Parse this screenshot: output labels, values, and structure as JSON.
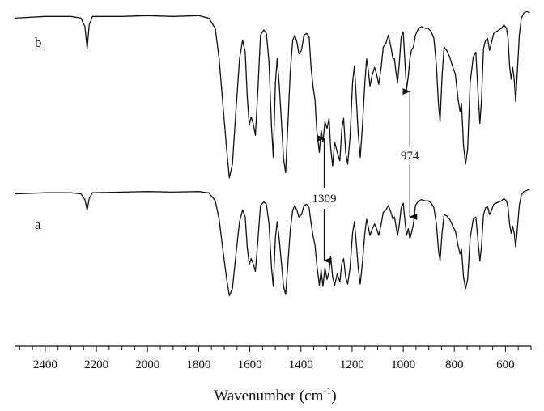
{
  "chart_data": {
    "type": "line",
    "xlabel_main": "Wavenumber (cm",
    "xlabel_sup": "-1",
    "xlabel_end": ")",
    "xlim": [
      2520,
      500
    ],
    "x_ticks": [
      2400,
      2200,
      2000,
      1800,
      1600,
      1400,
      1200,
      1000,
      800,
      600
    ],
    "x_tick_labels": [
      "2400",
      "2200",
      "2000",
      "1800",
      "1600",
      "1400",
      "1200",
      "1000",
      "800",
      "600"
    ],
    "y_units": "relative transmittance (0 = deepest, 1 = baseline)",
    "series": [
      {
        "name": "b",
        "points": [
          [
            2520,
            0.96
          ],
          [
            2400,
            0.97
          ],
          [
            2300,
            0.97
          ],
          [
            2260,
            0.96
          ],
          [
            2245,
            0.91
          ],
          [
            2236,
            0.78
          ],
          [
            2228,
            0.92
          ],
          [
            2215,
            0.97
          ],
          [
            2100,
            0.97
          ],
          [
            2000,
            0.975
          ],
          [
            1900,
            0.97
          ],
          [
            1800,
            0.975
          ],
          [
            1760,
            0.96
          ],
          [
            1735,
            0.9
          ],
          [
            1720,
            0.72
          ],
          [
            1705,
            0.45
          ],
          [
            1690,
            0.18
          ],
          [
            1680,
            0.02
          ],
          [
            1668,
            0.1
          ],
          [
            1655,
            0.4
          ],
          [
            1640,
            0.72
          ],
          [
            1628,
            0.83
          ],
          [
            1618,
            0.76
          ],
          [
            1610,
            0.5
          ],
          [
            1602,
            0.33
          ],
          [
            1595,
            0.38
          ],
          [
            1587,
            0.34
          ],
          [
            1578,
            0.27
          ],
          [
            1568,
            0.55
          ],
          [
            1558,
            0.86
          ],
          [
            1545,
            0.89
          ],
          [
            1535,
            0.87
          ],
          [
            1525,
            0.7
          ],
          [
            1515,
            0.32
          ],
          [
            1508,
            0.14
          ],
          [
            1500,
            0.58
          ],
          [
            1493,
            0.72
          ],
          [
            1485,
            0.57
          ],
          [
            1477,
            0.37
          ],
          [
            1468,
            0.13
          ],
          [
            1460,
            0.05
          ],
          [
            1452,
            0.3
          ],
          [
            1442,
            0.64
          ],
          [
            1432,
            0.83
          ],
          [
            1424,
            0.86
          ],
          [
            1416,
            0.82
          ],
          [
            1408,
            0.75
          ],
          [
            1398,
            0.77
          ],
          [
            1388,
            0.86
          ],
          [
            1378,
            0.87
          ],
          [
            1368,
            0.85
          ],
          [
            1360,
            0.66
          ],
          [
            1352,
            0.55
          ],
          [
            1345,
            0.48
          ],
          [
            1338,
            0.3
          ],
          [
            1328,
            0.17
          ],
          [
            1321,
            0.3
          ],
          [
            1314,
            0.23
          ],
          [
            1306,
            0.35
          ],
          [
            1298,
            0.31
          ],
          [
            1290,
            0.37
          ],
          [
            1284,
            0.2
          ],
          [
            1276,
            0.09
          ],
          [
            1268,
            0.23
          ],
          [
            1258,
            0.17
          ],
          [
            1248,
            0.12
          ],
          [
            1240,
            0.31
          ],
          [
            1233,
            0.37
          ],
          [
            1225,
            0.17
          ],
          [
            1217,
            0.1
          ],
          [
            1208,
            0.26
          ],
          [
            1198,
            0.58
          ],
          [
            1191,
            0.68
          ],
          [
            1184,
            0.5
          ],
          [
            1176,
            0.28
          ],
          [
            1168,
            0.14
          ],
          [
            1160,
            0.31
          ],
          [
            1150,
            0.58
          ],
          [
            1143,
            0.72
          ],
          [
            1137,
            0.66
          ],
          [
            1130,
            0.56
          ],
          [
            1122,
            0.62
          ],
          [
            1112,
            0.67
          ],
          [
            1104,
            0.63
          ],
          [
            1096,
            0.57
          ],
          [
            1086,
            0.67
          ],
          [
            1078,
            0.79
          ],
          [
            1068,
            0.81
          ],
          [
            1058,
            0.86
          ],
          [
            1048,
            0.79
          ],
          [
            1040,
            0.72
          ],
          [
            1034,
            0.72
          ],
          [
            1028,
            0.64
          ],
          [
            1022,
            0.58
          ],
          [
            1016,
            0.68
          ],
          [
            1008,
            0.85
          ],
          [
            1000,
            0.88
          ],
          [
            994,
            0.72
          ],
          [
            987,
            0.54
          ],
          [
            980,
            0.62
          ],
          [
            974,
            0.72
          ],
          [
            968,
            0.77
          ],
          [
            960,
            0.79
          ],
          [
            952,
            0.86
          ],
          [
            940,
            0.9
          ],
          [
            928,
            0.91
          ],
          [
            914,
            0.9
          ],
          [
            902,
            0.9
          ],
          [
            890,
            0.88
          ],
          [
            880,
            0.84
          ],
          [
            870,
            0.68
          ],
          [
            862,
            0.45
          ],
          [
            856,
            0.35
          ],
          [
            848,
            0.62
          ],
          [
            840,
            0.79
          ],
          [
            830,
            0.77
          ],
          [
            818,
            0.73
          ],
          [
            806,
            0.67
          ],
          [
            796,
            0.63
          ],
          [
            786,
            0.49
          ],
          [
            778,
            0.41
          ],
          [
            772,
            0.46
          ],
          [
            764,
            0.21
          ],
          [
            756,
            0.1
          ],
          [
            748,
            0.19
          ],
          [
            738,
            0.58
          ],
          [
            726,
            0.73
          ],
          [
            716,
            0.76
          ],
          [
            708,
            0.54
          ],
          [
            700,
            0.34
          ],
          [
            694,
            0.47
          ],
          [
            686,
            0.78
          ],
          [
            678,
            0.83
          ],
          [
            670,
            0.84
          ],
          [
            662,
            0.77
          ],
          [
            654,
            0.82
          ],
          [
            646,
            0.87
          ],
          [
            636,
            0.88
          ],
          [
            626,
            0.89
          ],
          [
            616,
            0.9
          ],
          [
            606,
            0.92
          ],
          [
            596,
            0.9
          ],
          [
            590,
            0.84
          ],
          [
            584,
            0.68
          ],
          [
            578,
            0.6
          ],
          [
            572,
            0.67
          ],
          [
            566,
            0.6
          ],
          [
            560,
            0.47
          ],
          [
            554,
            0.63
          ],
          [
            546,
            0.86
          ],
          [
            538,
            0.96
          ],
          [
            528,
            0.99
          ],
          [
            516,
            1.0
          ],
          [
            505,
            0.99
          ]
        ]
      },
      {
        "name": "a",
        "points": [
          [
            2520,
            0.94
          ],
          [
            2400,
            0.95
          ],
          [
            2300,
            0.95
          ],
          [
            2260,
            0.94
          ],
          [
            2245,
            0.89
          ],
          [
            2236,
            0.8
          ],
          [
            2228,
            0.9
          ],
          [
            2215,
            0.95
          ],
          [
            2100,
            0.955
          ],
          [
            2000,
            0.96
          ],
          [
            1900,
            0.955
          ],
          [
            1800,
            0.96
          ],
          [
            1760,
            0.95
          ],
          [
            1735,
            0.88
          ],
          [
            1720,
            0.72
          ],
          [
            1705,
            0.45
          ],
          [
            1690,
            0.2
          ],
          [
            1680,
            0.06
          ],
          [
            1668,
            0.12
          ],
          [
            1655,
            0.4
          ],
          [
            1640,
            0.7
          ],
          [
            1628,
            0.8
          ],
          [
            1618,
            0.74
          ],
          [
            1610,
            0.48
          ],
          [
            1602,
            0.33
          ],
          [
            1595,
            0.38
          ],
          [
            1587,
            0.34
          ],
          [
            1578,
            0.27
          ],
          [
            1568,
            0.55
          ],
          [
            1558,
            0.84
          ],
          [
            1545,
            0.87
          ],
          [
            1535,
            0.85
          ],
          [
            1525,
            0.68
          ],
          [
            1515,
            0.3
          ],
          [
            1508,
            0.14
          ],
          [
            1500,
            0.56
          ],
          [
            1493,
            0.7
          ],
          [
            1485,
            0.55
          ],
          [
            1477,
            0.36
          ],
          [
            1468,
            0.14
          ],
          [
            1460,
            0.07
          ],
          [
            1452,
            0.3
          ],
          [
            1442,
            0.62
          ],
          [
            1432,
            0.8
          ],
          [
            1424,
            0.84
          ],
          [
            1416,
            0.8
          ],
          [
            1408,
            0.74
          ],
          [
            1398,
            0.76
          ],
          [
            1388,
            0.84
          ],
          [
            1378,
            0.85
          ],
          [
            1368,
            0.82
          ],
          [
            1360,
            0.68
          ],
          [
            1352,
            0.57
          ],
          [
            1345,
            0.5
          ],
          [
            1338,
            0.33
          ],
          [
            1328,
            0.15
          ],
          [
            1321,
            0.28
          ],
          [
            1314,
            0.14
          ],
          [
            1306,
            0.3
          ],
          [
            1298,
            0.2
          ],
          [
            1290,
            0.27
          ],
          [
            1284,
            0.4
          ],
          [
            1276,
            0.22
          ],
          [
            1268,
            0.15
          ],
          [
            1258,
            0.25
          ],
          [
            1248,
            0.18
          ],
          [
            1240,
            0.34
          ],
          [
            1233,
            0.38
          ],
          [
            1225,
            0.22
          ],
          [
            1217,
            0.16
          ],
          [
            1208,
            0.3
          ],
          [
            1198,
            0.6
          ],
          [
            1191,
            0.7
          ],
          [
            1184,
            0.52
          ],
          [
            1176,
            0.3
          ],
          [
            1168,
            0.16
          ],
          [
            1160,
            0.33
          ],
          [
            1150,
            0.6
          ],
          [
            1143,
            0.72
          ],
          [
            1137,
            0.66
          ],
          [
            1130,
            0.58
          ],
          [
            1122,
            0.63
          ],
          [
            1112,
            0.68
          ],
          [
            1104,
            0.64
          ],
          [
            1096,
            0.58
          ],
          [
            1086,
            0.68
          ],
          [
            1078,
            0.78
          ],
          [
            1068,
            0.8
          ],
          [
            1058,
            0.84
          ],
          [
            1048,
            0.78
          ],
          [
            1040,
            0.72
          ],
          [
            1034,
            0.74
          ],
          [
            1028,
            0.66
          ],
          [
            1022,
            0.58
          ],
          [
            1016,
            0.66
          ],
          [
            1008,
            0.82
          ],
          [
            1000,
            0.86
          ],
          [
            994,
            0.72
          ],
          [
            987,
            0.58
          ],
          [
            980,
            0.64
          ],
          [
            974,
            0.55
          ],
          [
            968,
            0.6
          ],
          [
            960,
            0.68
          ],
          [
            952,
            0.84
          ],
          [
            940,
            0.88
          ],
          [
            928,
            0.89
          ],
          [
            914,
            0.88
          ],
          [
            902,
            0.88
          ],
          [
            890,
            0.86
          ],
          [
            880,
            0.82
          ],
          [
            870,
            0.68
          ],
          [
            862,
            0.45
          ],
          [
            856,
            0.36
          ],
          [
            848,
            0.6
          ],
          [
            840,
            0.76
          ],
          [
            830,
            0.75
          ],
          [
            818,
            0.72
          ],
          [
            806,
            0.66
          ],
          [
            796,
            0.62
          ],
          [
            786,
            0.5
          ],
          [
            778,
            0.42
          ],
          [
            772,
            0.46
          ],
          [
            764,
            0.22
          ],
          [
            756,
            0.12
          ],
          [
            748,
            0.2
          ],
          [
            738,
            0.56
          ],
          [
            726,
            0.72
          ],
          [
            716,
            0.74
          ],
          [
            708,
            0.55
          ],
          [
            700,
            0.36
          ],
          [
            694,
            0.48
          ],
          [
            686,
            0.76
          ],
          [
            678,
            0.82
          ],
          [
            670,
            0.83
          ],
          [
            662,
            0.76
          ],
          [
            654,
            0.8
          ],
          [
            646,
            0.85
          ],
          [
            636,
            0.86
          ],
          [
            626,
            0.87
          ],
          [
            616,
            0.88
          ],
          [
            606,
            0.9
          ],
          [
            596,
            0.88
          ],
          [
            590,
            0.82
          ],
          [
            584,
            0.68
          ],
          [
            578,
            0.6
          ],
          [
            572,
            0.66
          ],
          [
            566,
            0.6
          ],
          [
            560,
            0.48
          ],
          [
            554,
            0.62
          ],
          [
            546,
            0.84
          ],
          [
            538,
            0.93
          ],
          [
            528,
            0.96
          ],
          [
            516,
            0.97
          ],
          [
            505,
            0.98
          ]
        ]
      }
    ],
    "annotations": [
      {
        "label": "1309",
        "x": 1309,
        "description": "arrows up toward b and down toward a"
      },
      {
        "label": "974",
        "x": 974,
        "description": "arrows up toward b and down toward a"
      }
    ]
  }
}
